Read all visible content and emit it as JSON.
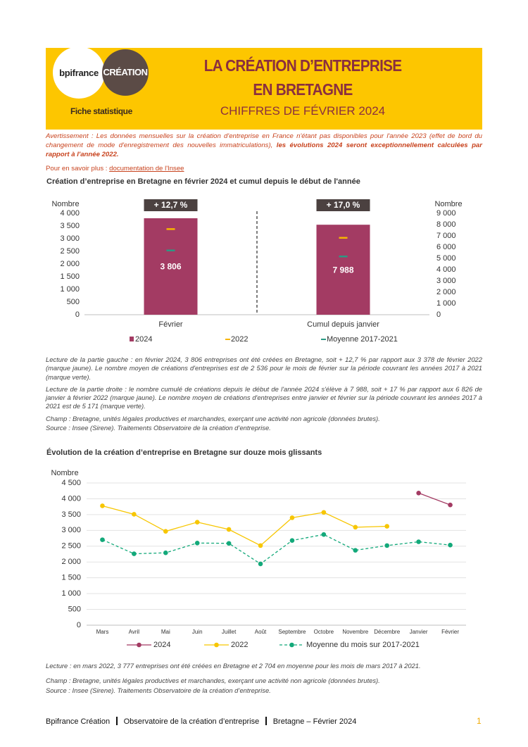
{
  "header": {
    "logo_left": "bpifrance",
    "logo_right": "CRÉATION",
    "tag": "Fiche statistique",
    "title_line1": "LA CRÉATION D’ENTREPRISE",
    "title_line2": "EN BRETAGNE",
    "subtitle": "CHIFFRES DE FÉVRIER 2024"
  },
  "warning": {
    "text": "Avertissement : Les données mensuelles sur la création d'entreprise en France n'étant pas disponibles pour l'année 2023 (effet de bord du changement de mode d'enregistrement des nouvelles immatriculations), ",
    "emphasis": "les évolutions 2024 seront exceptionnellement calculées par rapport à l'année 2022."
  },
  "more": {
    "text": "Pour en savoir plus : ",
    "link": "documentation de l'Insee"
  },
  "chart_data": [
    {
      "type": "bar",
      "title": "Création d’entreprise en Bretagne en février 2024 et cumul depuis le début de l'année",
      "ylabel": "Nombre",
      "y2label": "Nombre",
      "categories": [
        "Février",
        "Cumul depuis janvier"
      ],
      "category_axes": [
        "y",
        "y2"
      ],
      "annotations": [
        "+ 12,7 %",
        "+ 17,0 %"
      ],
      "series": [
        {
          "name": "2024",
          "mark": "bar",
          "color": "#a33b63",
          "values": [
            3806,
            7988
          ],
          "value_labels": [
            "3 806",
            "7 988"
          ]
        },
        {
          "name": "2022",
          "mark": "dash",
          "color": "#f7b500",
          "values": [
            3378,
            6826
          ]
        },
        {
          "name": "Moyenne 2017-2021",
          "mark": "dash",
          "color": "#2a9a84",
          "values": [
            2536,
            5171
          ]
        }
      ],
      "ylim": [
        0,
        4000
      ],
      "yticks": [
        0,
        500,
        {
          "value": 1000,
          "label": "1 000"
        },
        {
          "value": 1500,
          "label": "1 500"
        },
        {
          "value": 2000,
          "label": "2 000"
        },
        {
          "value": 2500,
          "label": "2 500"
        },
        {
          "value": 3000,
          "label": "3 000"
        },
        {
          "value": 3500,
          "label": "3 500"
        },
        {
          "value": 4000,
          "label": "4 000"
        }
      ],
      "y2lim": [
        0,
        9000
      ],
      "y2ticks": [
        0,
        {
          "value": 1000,
          "label": "1 000"
        },
        {
          "value": 2000,
          "label": "2 000"
        },
        {
          "value": 3000,
          "label": "3 000"
        },
        {
          "value": 4000,
          "label": "4 000"
        },
        {
          "value": 5000,
          "label": "5 000"
        },
        {
          "value": 6000,
          "label": "6 000"
        },
        {
          "value": 7000,
          "label": "7 000"
        },
        {
          "value": 8000,
          "label": "8 000"
        },
        {
          "value": 9000,
          "label": "9 000"
        }
      ]
    },
    {
      "type": "line",
      "title": "Évolution de la création d’entreprise en Bretagne sur douze mois glissants",
      "ylabel": "Nombre",
      "categories": [
        "Mars",
        "Avril",
        "Mai",
        "Juin",
        "Juillet",
        "Août",
        "Septembre",
        "Octobre",
        "Novembre",
        "Décembre",
        "Janvier",
        "Février"
      ],
      "series": [
        {
          "name": "2024",
          "color": "#a33b63",
          "dashed": false,
          "values": [
            null,
            null,
            null,
            null,
            null,
            null,
            null,
            null,
            null,
            null,
            4182,
            3806
          ]
        },
        {
          "name": "2022",
          "color": "#f7c600",
          "dashed": false,
          "values": [
            3777,
            3510,
            2970,
            3260,
            3030,
            2520,
            3400,
            3570,
            3100,
            3130,
            null,
            null
          ]
        },
        {
          "name": "Moyenne du mois sur 2017-2021",
          "color": "#13a97a",
          "dashed": true,
          "values": [
            2704,
            2260,
            2290,
            2600,
            2590,
            1940,
            2680,
            2870,
            2370,
            2520,
            2640,
            2536
          ]
        }
      ],
      "ylim": [
        0,
        4500
      ],
      "yticks": [
        0,
        500,
        {
          "value": 1000,
          "label": "1 000"
        },
        {
          "value": 1500,
          "label": "1 500"
        },
        {
          "value": 2000,
          "label": "2 000"
        },
        {
          "value": 2500,
          "label": "2 500"
        },
        {
          "value": 3000,
          "label": "3 000"
        },
        {
          "value": 3500,
          "label": "3 500"
        },
        {
          "value": 4000,
          "label": "4 000"
        },
        {
          "value": 4500,
          "label": "4 500"
        }
      ],
      "grid": true
    }
  ],
  "notes1": [
    "Lecture de la partie gauche : en février 2024, 3 806 entreprises ont été créées en Bretagne, soit + 12,7 % par rapport aux 3 378 de février 2022 (marque jaune). Le nombre moyen de créations d'entreprises est de 2 536 pour le mois de février sur la période couvrant les années 2017 à 2021 (marque verte).",
    "Lecture de la partie droite : le nombre cumulé de créations depuis le début de l'année 2024 s'élève à 7 988, soit + 17 % par rapport aux 6 826 de janvier à février 2022 (marque jaune). Le nombre moyen de créations d'entreprises entre janvier et février sur la période couvrant les années 2017 à 2021 est de 5 171 (marque verte).",
    "Champ : Bretagne, unités légales productives et marchandes, exerçant une activité non agricole (données brutes).",
    "Source : Insee (Sirene). Traitements Observatoire de la création d’entreprise."
  ],
  "notes2": [
    "Lecture : en mars 2022, 3 777 entreprises ont été créées en Bretagne et 2 704 en moyenne pour les mois de mars 2017 à 2021.",
    "Champ : Bretagne, unités légales productives et marchandes, exerçant une activité non agricole (données brutes).",
    "Source : Insee (Sirene). Traitements Observatoire de la création d’entreprise."
  ],
  "footer": {
    "parts": [
      "Bpifrance Création",
      "Observatoire de la création d’entreprise",
      "Bretagne – Février 2024"
    ],
    "page": 1
  }
}
